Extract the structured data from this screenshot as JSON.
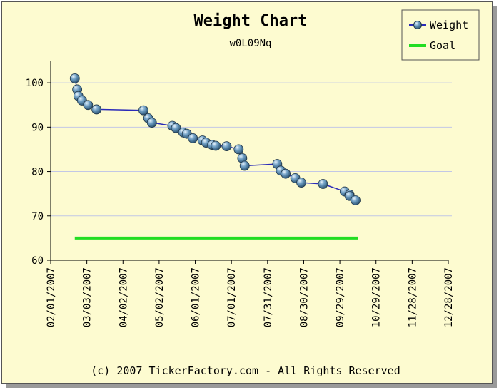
{
  "chart_data": {
    "type": "line",
    "title": "Weight Chart",
    "subtitle": "w0L09Nq",
    "footer": "(c) 2007 TickerFactory.com - All Rights Reserved",
    "xlabel": "",
    "ylabel": "",
    "ylim": [
      60,
      105
    ],
    "y_ticks": [
      60,
      70,
      80,
      90,
      100
    ],
    "x_ticks": [
      "02/01/2007",
      "03/03/2007",
      "04/02/2007",
      "05/02/2007",
      "06/01/2007",
      "07/01/2007",
      "07/31/2007",
      "08/30/2007",
      "09/29/2007",
      "10/29/2007",
      "11/28/2007",
      "12/28/2007"
    ],
    "grid": "horizontal",
    "legend_position": "top-right",
    "series": [
      {
        "name": "Weight",
        "color": "#2a2ab8",
        "marker_color": "#6f9fc4",
        "x_days": [
          20,
          22,
          23,
          26,
          31,
          38,
          77,
          81,
          84,
          101,
          104,
          110,
          113,
          118,
          126,
          129,
          134,
          137,
          146,
          156,
          159,
          161,
          188,
          191,
          195,
          203,
          208,
          226,
          244,
          248,
          248,
          253
        ],
        "values": [
          101,
          98.5,
          97,
          96,
          95,
          94,
          93.8,
          92,
          91,
          90.3,
          89.8,
          88.8,
          88.5,
          87.5,
          87,
          86.5,
          86,
          85.8,
          85.7,
          85,
          83,
          81.3,
          81.7,
          80.2,
          79.5,
          78.5,
          77.5,
          77.2,
          75.5,
          74.8,
          74.5,
          73.5
        ]
      },
      {
        "name": "Goal",
        "color": "#22dd22",
        "x_days": [
          20,
          255
        ],
        "values": [
          65,
          65
        ]
      }
    ]
  }
}
